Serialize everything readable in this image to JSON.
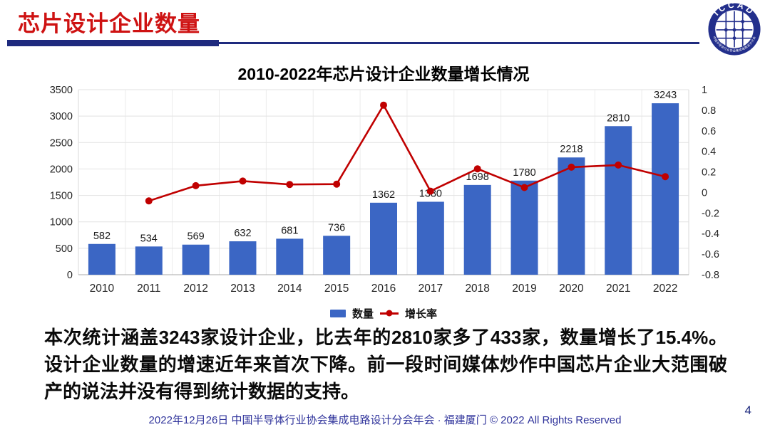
{
  "slide": {
    "background": "#FFFFFF"
  },
  "header": {
    "title": "芯片设计企业数量",
    "title_color": "#CE1212",
    "rule_color": "#1E2A7E",
    "logo": {
      "top_text": "ICCAD",
      "ring_text": "中国半导体行业协会集成电路设计分会"
    }
  },
  "chart_data": {
    "type": "bar",
    "combo": "bar+line",
    "title": "2010-2022年芯片设计企业数量增长情况",
    "categories": [
      "2010",
      "2011",
      "2012",
      "2013",
      "2014",
      "2015",
      "2016",
      "2017",
      "2018",
      "2019",
      "2020",
      "2021",
      "2022"
    ],
    "series": [
      {
        "name": "数量",
        "type": "bar",
        "axis": "left",
        "color": "#3B66C4",
        "values": [
          582,
          534,
          569,
          632,
          681,
          736,
          1362,
          1380,
          1698,
          1780,
          2218,
          2810,
          3243
        ]
      },
      {
        "name": "增长率",
        "type": "line",
        "axis": "right",
        "color": "#C00000",
        "values": [
          null,
          -0.082,
          0.066,
          0.111,
          0.078,
          0.081,
          0.85,
          0.013,
          0.23,
          0.048,
          0.246,
          0.267,
          0.154
        ]
      }
    ],
    "left_axis": {
      "min": 0,
      "max": 3500,
      "step": 500,
      "ticks": [
        "3500",
        "3000",
        "2500",
        "2000",
        "1500",
        "1000",
        "500",
        "0"
      ]
    },
    "right_axis": {
      "min": -0.8,
      "max": 1,
      "step": 0.2,
      "ticks": [
        "1",
        "0.8",
        "0.6",
        "0.4",
        "0.2",
        "0",
        "-0.2",
        "-0.4",
        "-0.6",
        "-0.8"
      ]
    },
    "grid": true,
    "legend_position": "bottom"
  },
  "body": {
    "paragraph": "本次统计涵盖3243家设计企业，比去年的2810家多了433家，数量增长了15.4%。设计企业数量的增速近年来首次下降。前一段时间媒体炒作中国芯片企业大范围破产的说法并没有得到统计数据的支持。"
  },
  "footer": {
    "text": "2022年12月26日 中国半导体行业协会集成电路设计分会年会 · 福建厦门 © 2022 All Rights Reserved",
    "page_number": "4"
  }
}
